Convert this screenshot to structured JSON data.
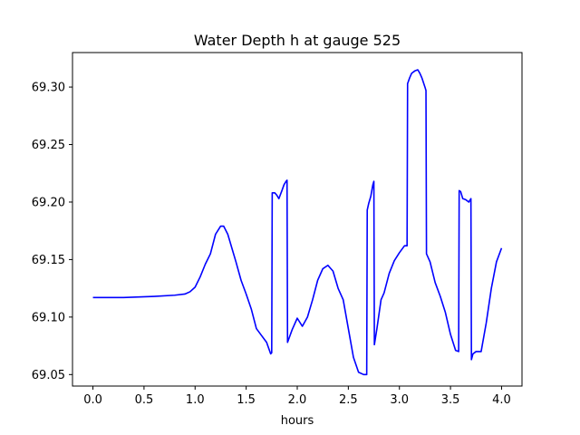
{
  "chart_data": {
    "type": "line",
    "title": "Water Depth h at gauge 525",
    "xlabel": "hours",
    "ylabel": "",
    "xlim": [
      -0.2,
      4.2
    ],
    "ylim": [
      69.04,
      69.33
    ],
    "x_ticks": [
      0.0,
      0.5,
      1.0,
      1.5,
      2.0,
      2.5,
      3.0,
      3.5,
      4.0
    ],
    "x_tick_labels": [
      "0.0",
      "0.5",
      "1.0",
      "1.5",
      "2.0",
      "2.5",
      "3.0",
      "3.5",
      "4.0"
    ],
    "y_ticks": [
      69.05,
      69.1,
      69.15,
      69.2,
      69.25,
      69.3
    ],
    "y_tick_labels": [
      "69.05",
      "69.10",
      "69.15",
      "69.20",
      "69.25",
      "69.30"
    ],
    "grid": false,
    "series": [
      {
        "color": "#0000ff",
        "x": [
          0.0,
          0.3,
          0.6,
          0.8,
          0.9,
          0.95,
          1.0,
          1.05,
          1.1,
          1.15,
          1.2,
          1.25,
          1.28,
          1.32,
          1.36,
          1.4,
          1.45,
          1.5,
          1.55,
          1.6,
          1.65,
          1.7,
          1.74,
          1.75,
          1.755,
          1.78,
          1.8,
          1.82,
          1.85,
          1.87,
          1.89,
          1.9,
          1.905,
          1.95,
          2.0,
          2.05,
          2.1,
          2.15,
          2.2,
          2.25,
          2.3,
          2.35,
          2.4,
          2.45,
          2.5,
          2.55,
          2.6,
          2.65,
          2.68,
          2.685,
          2.7,
          2.72,
          2.74,
          2.75,
          2.755,
          2.78,
          2.82,
          2.85,
          2.9,
          2.95,
          3.0,
          3.05,
          3.075,
          3.08,
          3.1,
          3.12,
          3.15,
          3.18,
          3.2,
          3.22,
          3.25,
          3.26,
          3.265,
          3.3,
          3.35,
          3.4,
          3.45,
          3.5,
          3.55,
          3.58,
          3.585,
          3.6,
          3.62,
          3.65,
          3.68,
          3.7,
          3.705,
          3.72,
          3.75,
          3.8,
          3.85,
          3.9,
          3.95,
          4.0
        ],
        "y": [
          69.117,
          69.117,
          69.118,
          69.119,
          69.12,
          69.122,
          69.126,
          69.135,
          69.146,
          69.155,
          69.172,
          69.179,
          69.179,
          69.172,
          69.16,
          69.148,
          69.132,
          69.12,
          69.107,
          69.09,
          69.084,
          69.078,
          69.068,
          69.069,
          69.208,
          69.208,
          69.206,
          69.203,
          69.21,
          69.215,
          69.218,
          69.219,
          69.078,
          69.089,
          69.099,
          69.092,
          69.1,
          69.115,
          69.132,
          69.142,
          69.145,
          69.14,
          69.125,
          69.115,
          69.09,
          69.065,
          69.052,
          69.05,
          69.05,
          69.193,
          69.199,
          69.205,
          69.215,
          69.218,
          69.076,
          69.09,
          69.115,
          69.121,
          69.138,
          69.149,
          69.156,
          69.162,
          69.162,
          69.303,
          69.308,
          69.312,
          69.314,
          69.315,
          69.312,
          69.308,
          69.3,
          69.297,
          69.155,
          69.148,
          69.13,
          69.118,
          69.104,
          69.085,
          69.071,
          69.07,
          69.21,
          69.209,
          69.203,
          69.202,
          69.2,
          69.203,
          69.063,
          69.068,
          69.07,
          69.07,
          69.095,
          69.125,
          69.148,
          69.16
        ]
      }
    ]
  }
}
